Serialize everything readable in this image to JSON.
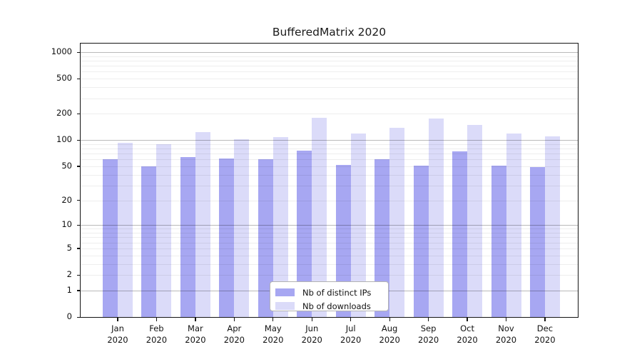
{
  "title": "BufferedMatrix 2020",
  "chart_data": {
    "type": "bar",
    "title": "BufferedMatrix 2020",
    "categories": [
      "Jan",
      "Feb",
      "Mar",
      "Apr",
      "May",
      "Jun",
      "Jul",
      "Aug",
      "Sep",
      "Oct",
      "Nov",
      "Dec"
    ],
    "year_label": "2020",
    "series": [
      {
        "name": "Nb of distinct IPs",
        "color": "#a7a7f2",
        "values": [
          60,
          50,
          64,
          61,
          60,
          75,
          52,
          60,
          51,
          74,
          51,
          49
        ]
      },
      {
        "name": "Nb of downloads",
        "color": "#dbdbf9",
        "values": [
          93,
          89,
          124,
          102,
          109,
          178,
          118,
          138,
          175,
          149,
          119,
          110
        ]
      }
    ],
    "yscale": "log10(1+x)",
    "yticks": [
      0,
      1,
      2,
      5,
      10,
      20,
      50,
      100,
      200,
      500,
      1000
    ],
    "ylim": [
      0,
      1100
    ],
    "xlabel": "",
    "ylabel": "",
    "grid": "horizontal log minor and major gridlines",
    "legend_position": "bottom-center"
  },
  "legend": {
    "items": [
      {
        "label": "Nb of distinct IPs"
      },
      {
        "label": "Nb of downloads"
      }
    ]
  },
  "colors": {
    "bar_distinct_ips": "#a7a7f2",
    "bar_downloads": "#dbdbf9",
    "axis": "#141414",
    "background": "#ffffff"
  }
}
